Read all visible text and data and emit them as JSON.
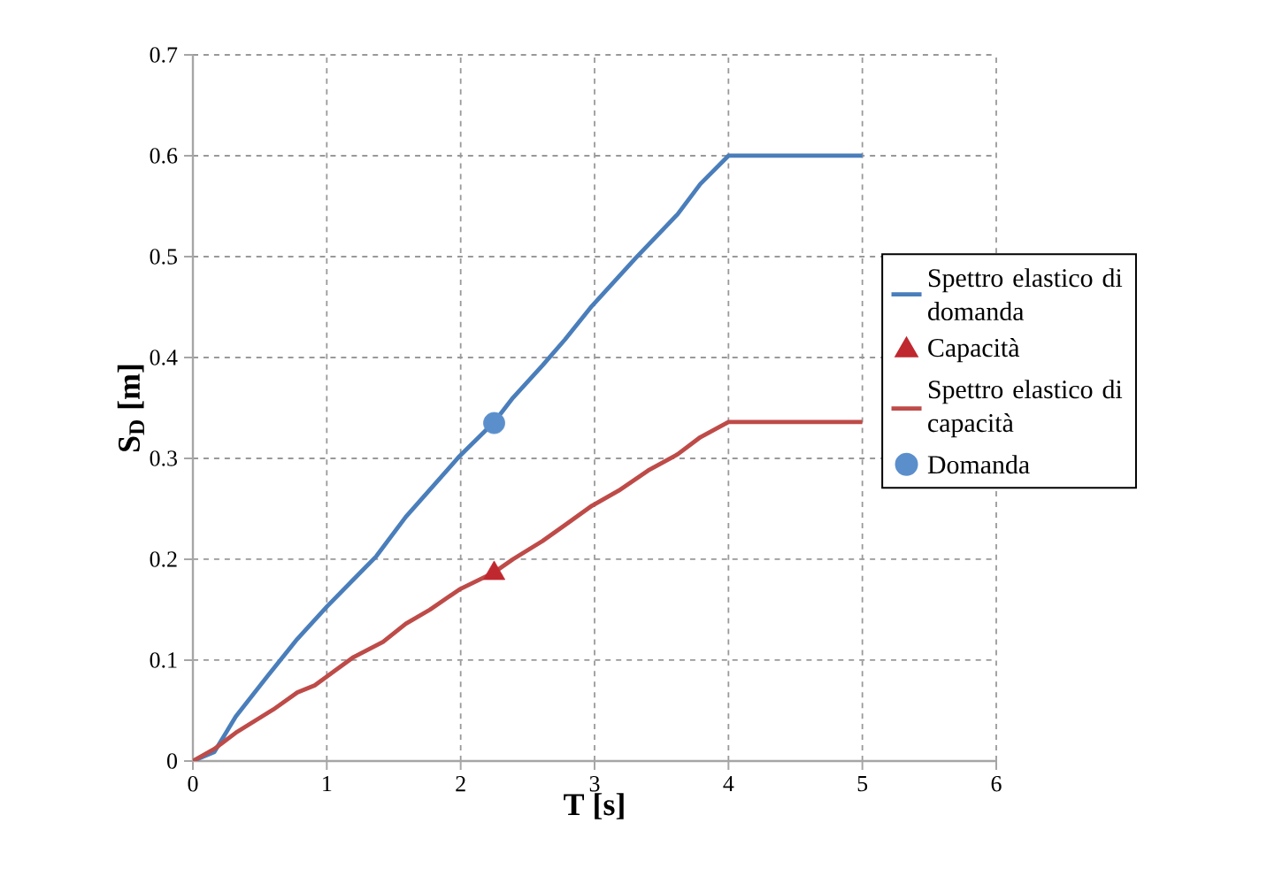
{
  "chart_data": {
    "type": "line",
    "xlabel": "T [s]",
    "ylabel": "S$_{D}$ [m]",
    "xlim": [
      0,
      6
    ],
    "ylim": [
      0,
      0.7
    ],
    "xticks": [
      0,
      1,
      2,
      3,
      4,
      5,
      6
    ],
    "yticks": [
      0,
      0.1,
      0.2,
      0.3,
      0.4,
      0.5,
      0.6,
      0.7
    ],
    "grid": true,
    "legend": "right",
    "line_style": "solid",
    "series": [
      {
        "name": "Spettro elastico di domanda",
        "marker": "none",
        "color": "#4a7ebb",
        "x": [
          0,
          0.16,
          0.32,
          0.58,
          0.78,
          1.0,
          1.2,
          1.37,
          1.59,
          1.99,
          2.25,
          2.39,
          2.61,
          2.78,
          2.98,
          3.31,
          3.62,
          3.79,
          4,
          5
        ],
        "values": [
          0,
          0.009,
          0.044,
          0.088,
          0.121,
          0.153,
          0.18,
          0.203,
          0.242,
          0.302,
          0.336,
          0.36,
          0.392,
          0.418,
          0.451,
          0.499,
          0.542,
          0.572,
          0.6,
          0.6
        ]
      },
      {
        "name": "Capacità",
        "type": "scatter",
        "marker": "triangle",
        "color": "#c0282f",
        "x": [
          2.25
        ],
        "values": [
          0.186
        ]
      },
      {
        "name": "Spettro elastico di capacità",
        "marker": "none",
        "color": "#be4b48",
        "x": [
          0,
          0.16,
          0.32,
          0.6,
          0.78,
          0.91,
          1.2,
          1.42,
          1.59,
          1.77,
          1.99,
          2.25,
          2.39,
          2.61,
          2.78,
          2.98,
          3.18,
          3.4,
          3.62,
          3.79,
          4,
          5
        ],
        "values": [
          0,
          0.012,
          0.028,
          0.051,
          0.068,
          0.075,
          0.103,
          0.118,
          0.136,
          0.15,
          0.17,
          0.187,
          0.2,
          0.218,
          0.234,
          0.253,
          0.268,
          0.288,
          0.304,
          0.321,
          0.336,
          0.336
        ]
      },
      {
        "name": "Domanda",
        "type": "scatter",
        "marker": "circle",
        "color": "#5b8fcc",
        "x": [
          2.25
        ],
        "values": [
          0.335
        ]
      }
    ]
  }
}
